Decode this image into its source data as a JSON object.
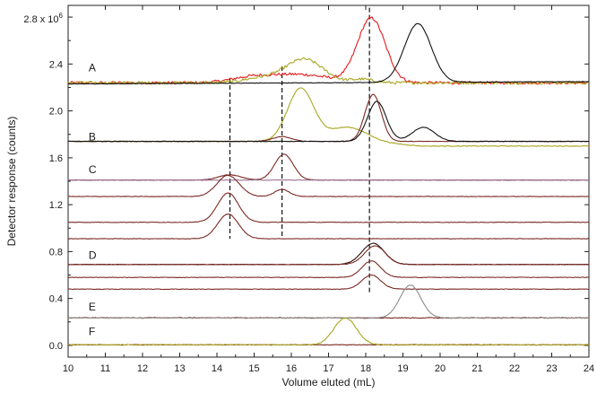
{
  "chart_data": {
    "type": "line",
    "title": "",
    "xlabel": "Volume eluted (mL)",
    "ylabel": "Detector response (counts)",
    "xlim": [
      10,
      24
    ],
    "ylim": [
      -0.1,
      2.9
    ],
    "y_scale_note": "× 10^6",
    "x_ticks": [
      "10",
      "11",
      "12",
      "13",
      "14",
      "15",
      "16",
      "17",
      "18",
      "19",
      "20",
      "21",
      "22",
      "23",
      "24"
    ],
    "y_ticks": [
      {
        "value": 0.0,
        "label": "0.0"
      },
      {
        "value": 0.4,
        "label": "0.4"
      },
      {
        "value": 0.8,
        "label": "0.8"
      },
      {
        "value": 1.2,
        "label": "1.2"
      },
      {
        "value": 1.6,
        "label": "1.6"
      },
      {
        "value": 2.0,
        "label": "2.0"
      },
      {
        "value": 2.4,
        "label": "2.4"
      },
      {
        "value": 2.8,
        "label": "2.8 x 10",
        "sup": "6"
      }
    ],
    "grid": false,
    "reference_lines": [
      14.35,
      15.75,
      18.1
    ],
    "colors": {
      "red": "#e41a1c",
      "olive": "#a9a521",
      "black": "#111111",
      "brown": "#7a2a24",
      "gray": "#8c8c8c",
      "purple": "#9b7090",
      "dark_brown": "#2a0d0a"
    },
    "trace_groups": [
      {
        "label": "A",
        "label_x": 10.55,
        "label_y": 2.37
      },
      {
        "label": "B",
        "label_x": 10.55,
        "label_y": 1.78
      },
      {
        "label": "C",
        "label_x": 10.55,
        "label_y": 1.5
      },
      {
        "label": "D",
        "label_x": 10.55,
        "label_y": 0.77
      },
      {
        "label": "E",
        "label_x": 10.55,
        "label_y": 0.33
      },
      {
        "label": "F",
        "label_x": 10.55,
        "label_y": 0.12
      }
    ],
    "series": [
      {
        "group": "A",
        "color": "red",
        "base": 2.24,
        "noise": 0.012,
        "peaks": [
          [
            18.15,
            0.55,
            0.37
          ],
          [
            16.2,
            0.07,
            0.8
          ],
          [
            14.9,
            0.04,
            0.55
          ]
        ]
      },
      {
        "group": "A",
        "color": "olive",
        "base": 2.24,
        "noise": 0.012,
        "peaks": [
          [
            16.35,
            0.2,
            0.5
          ],
          [
            15.2,
            0.04,
            0.5
          ],
          [
            17.9,
            0.03,
            0.3
          ]
        ]
      },
      {
        "group": "A",
        "color": "black",
        "base": 2.23,
        "drift": 0.02,
        "noise": 0.002,
        "peaks": [
          [
            19.4,
            0.5,
            0.36
          ]
        ]
      },
      {
        "group": "B",
        "color": "olive",
        "base": 1.74,
        "noise": 0.003,
        "peaks": [
          [
            16.25,
            0.45,
            0.35
          ],
          [
            17.5,
            0.12,
            0.5
          ]
        ],
        "drop_after": [
          18.0,
          0.04
        ]
      },
      {
        "group": "B",
        "color": "brown",
        "base": 1.74,
        "noise": 0.002,
        "peaks": [
          [
            18.2,
            0.4,
            0.22
          ],
          [
            15.75,
            0.04,
            0.25
          ]
        ]
      },
      {
        "group": "B",
        "color": "black",
        "base": 1.74,
        "noise": 0.002,
        "peaks": [
          [
            18.3,
            0.34,
            0.25
          ],
          [
            19.55,
            0.12,
            0.3
          ]
        ]
      },
      {
        "group": "C",
        "color": "brown",
        "base": 1.41,
        "noise": 0.002,
        "peaks": [
          [
            15.8,
            0.22,
            0.25
          ],
          [
            14.35,
            0.045,
            0.3
          ]
        ]
      },
      {
        "group": "C",
        "color": "purple",
        "base": 1.41,
        "noise": 0.002,
        "peaks": []
      },
      {
        "group": "C",
        "color": "brown",
        "base": 1.27,
        "noise": 0.002,
        "peaks": [
          [
            14.3,
            0.18,
            0.3
          ],
          [
            15.75,
            0.06,
            0.2
          ]
        ]
      },
      {
        "group": "C",
        "color": "brown",
        "base": 1.05,
        "noise": 0.002,
        "peaks": [
          [
            14.3,
            0.25,
            0.28
          ]
        ]
      },
      {
        "group": "C",
        "color": "brown",
        "base": 0.91,
        "noise": 0.002,
        "peaks": [
          [
            14.3,
            0.21,
            0.28
          ]
        ]
      },
      {
        "group": "D",
        "color": "dark_brown",
        "base": 0.69,
        "noise": 0.002,
        "peaks": [
          [
            18.2,
            0.18,
            0.3
          ]
        ]
      },
      {
        "group": "D",
        "color": "brown",
        "base": 0.69,
        "noise": 0.002,
        "peaks": [
          [
            18.25,
            0.16,
            0.28
          ]
        ]
      },
      {
        "group": "D",
        "color": "brown",
        "base": 0.58,
        "noise": 0.002,
        "peaks": [
          [
            18.15,
            0.14,
            0.25
          ]
        ]
      },
      {
        "group": "D",
        "color": "brown",
        "base": 0.48,
        "noise": 0.002,
        "peaks": [
          [
            18.15,
            0.12,
            0.25
          ]
        ]
      },
      {
        "group": "E",
        "color": "brown",
        "base": 0.235,
        "noise": 0.004,
        "peaks": []
      },
      {
        "group": "E",
        "color": "gray",
        "base": 0.235,
        "noise": 0.002,
        "peaks": [
          [
            19.2,
            0.28,
            0.28
          ]
        ]
      },
      {
        "group": "F",
        "color": "brown",
        "base": 0.005,
        "noise": 0.003,
        "peaks": []
      },
      {
        "group": "F",
        "color": "olive",
        "base": 0.005,
        "noise": 0.004,
        "peaks": [
          [
            17.45,
            0.23,
            0.3
          ]
        ]
      }
    ]
  }
}
